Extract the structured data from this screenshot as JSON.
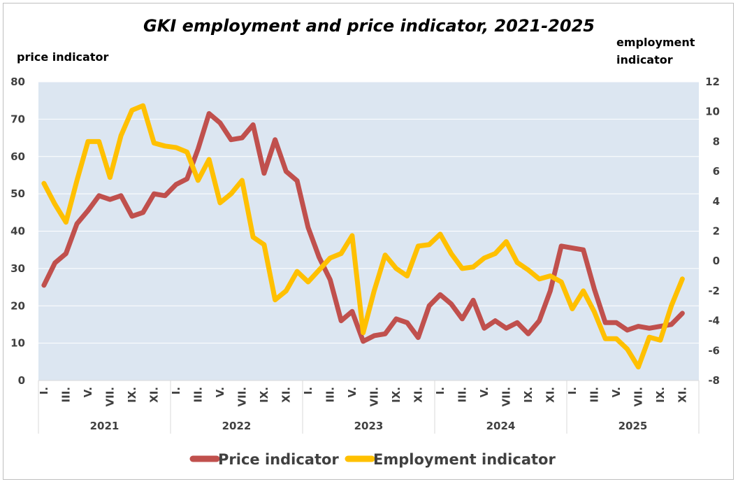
{
  "chart_data": {
    "type": "line",
    "title": "GKI employment and price indicator, 2021-2025",
    "y_left_label": "price indicator",
    "y_right_label_lines": [
      "employment",
      "indicator"
    ],
    "y_left_lim": [
      0,
      80
    ],
    "y_left_ticks": [
      "0",
      "10",
      "20",
      "30",
      "40",
      "50",
      "60",
      "70",
      "80"
    ],
    "y_right_lim": [
      -8,
      12
    ],
    "y_right_ticks": [
      "-8",
      "-6",
      "-4",
      "-2",
      "0",
      "2",
      "4",
      "6",
      "8",
      "10",
      "12"
    ],
    "month_labels": [
      "I.",
      "III.",
      "V.",
      "VII.",
      "IX.",
      "XI."
    ],
    "years": [
      "2021",
      "2022",
      "2023",
      "2024",
      "2025"
    ],
    "months_per_year": 12,
    "plot_background": "#dce6f1",
    "grid": true,
    "legend_position": "bottom",
    "series": [
      {
        "name": "Price indicator",
        "axis": "left",
        "color": "#c0504d",
        "values": [
          25.5,
          31.5,
          34,
          42,
          45.5,
          49.5,
          48.5,
          49.5,
          44,
          45,
          50,
          49.5,
          52.5,
          54,
          62,
          71.5,
          69,
          64.5,
          65,
          68.5,
          55.5,
          64.5,
          56,
          53.5,
          41,
          33,
          27,
          16,
          18.5,
          10.5,
          12,
          12.5,
          16.5,
          15.5,
          11.5,
          20,
          23,
          20.5,
          16.5,
          21.5,
          14,
          16,
          14,
          15.5,
          12.5,
          16,
          24,
          36,
          35.5,
          35,
          24.5,
          15.5,
          15.5,
          13.5,
          14.5,
          14,
          14.5,
          15,
          18
        ]
      },
      {
        "name": "Employment indicator",
        "axis": "right",
        "color": "#ffc000",
        "values": [
          5.2,
          3.8,
          2.6,
          5.4,
          8,
          8,
          5.6,
          8.4,
          10.1,
          10.4,
          7.9,
          7.7,
          7.6,
          7.3,
          5.4,
          6.8,
          3.9,
          4.5,
          5.4,
          1.6,
          1.1,
          -2.6,
          -2,
          -0.7,
          -1.4,
          -0.6,
          0.2,
          0.5,
          1.7,
          -4.8,
          -2,
          0.4,
          -0.5,
          -1,
          1,
          1.1,
          1.8,
          0.5,
          -0.5,
          -0.4,
          0.2,
          0.5,
          1.3,
          -0.1,
          -0.6,
          -1.2,
          -1,
          -1.4,
          -3.2,
          -2,
          -3.4,
          -5.2,
          -5.2,
          -5.9,
          -7.1,
          -5.1,
          -5.3,
          -3,
          -1.2
        ]
      }
    ]
  }
}
